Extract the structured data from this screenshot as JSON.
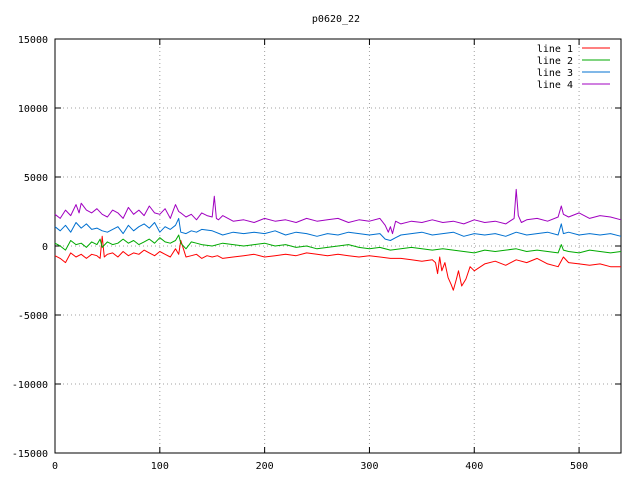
{
  "chart_data": {
    "type": "line",
    "title": "p0620_22",
    "xlabel": "",
    "ylabel": "",
    "xlim": [
      0,
      540
    ],
    "ylim": [
      -15000,
      15000
    ],
    "x_ticks": [
      0,
      100,
      200,
      300,
      400,
      500
    ],
    "y_ticks": [
      -15000,
      -10000,
      -5000,
      0,
      5000,
      10000,
      15000
    ],
    "grid": true,
    "legend_position": "top-right",
    "series": [
      {
        "name": "line 1",
        "color": "#ff0000",
        "x": [
          0,
          5,
          10,
          15,
          20,
          25,
          30,
          35,
          40,
          43,
          45,
          47,
          50,
          55,
          60,
          65,
          70,
          75,
          80,
          85,
          90,
          95,
          100,
          105,
          110,
          115,
          118,
          120,
          125,
          130,
          135,
          140,
          145,
          150,
          155,
          160,
          170,
          180,
          190,
          200,
          210,
          220,
          230,
          240,
          250,
          260,
          270,
          280,
          290,
          300,
          310,
          320,
          330,
          340,
          350,
          360,
          363,
          365,
          367,
          369,
          372,
          375,
          378,
          380,
          383,
          385,
          388,
          392,
          396,
          400,
          410,
          420,
          430,
          440,
          450,
          460,
          470,
          480,
          485,
          490,
          500,
          510,
          520,
          530,
          540
        ],
        "y": [
          -700,
          -900,
          -1200,
          -500,
          -800,
          -600,
          -900,
          -600,
          -700,
          -900,
          700,
          -800,
          -600,
          -500,
          -800,
          -400,
          -700,
          -500,
          -600,
          -300,
          -500,
          -700,
          -400,
          -600,
          -800,
          -200,
          -600,
          400,
          -800,
          -700,
          -600,
          -900,
          -700,
          -800,
          -700,
          -900,
          -800,
          -700,
          -600,
          -800,
          -700,
          -600,
          -700,
          -500,
          -600,
          -700,
          -600,
          -700,
          -800,
          -700,
          -800,
          -900,
          -900,
          -1000,
          -1100,
          -1000,
          -1200,
          -2000,
          -800,
          -1800,
          -1200,
          -2300,
          -2800,
          -3200,
          -2400,
          -1800,
          -2900,
          -2400,
          -1500,
          -1800,
          -1300,
          -1100,
          -1400,
          -1000,
          -1200,
          -900,
          -1300,
          -1500,
          -800,
          -1200,
          -1300,
          -1400,
          -1300,
          -1500,
          -1500
        ]
      },
      {
        "name": "line 2",
        "color": "#00aa00",
        "x": [
          0,
          5,
          10,
          15,
          20,
          25,
          30,
          35,
          40,
          43,
          45,
          50,
          55,
          60,
          65,
          70,
          75,
          80,
          85,
          90,
          95,
          100,
          105,
          110,
          115,
          118,
          120,
          125,
          130,
          135,
          140,
          150,
          160,
          170,
          180,
          190,
          200,
          210,
          220,
          230,
          240,
          250,
          260,
          270,
          280,
          290,
          300,
          310,
          320,
          330,
          340,
          350,
          360,
          370,
          380,
          390,
          400,
          410,
          420,
          430,
          440,
          450,
          460,
          470,
          480,
          483,
          485,
          490,
          500,
          510,
          520,
          530,
          540
        ],
        "y": [
          200,
          0,
          -300,
          400,
          100,
          200,
          -100,
          300,
          100,
          500,
          -100,
          300,
          100,
          200,
          500,
          200,
          400,
          100,
          300,
          500,
          200,
          600,
          300,
          200,
          400,
          800,
          200,
          -200,
          300,
          200,
          100,
          0,
          200,
          100,
          0,
          100,
          200,
          0,
          100,
          -100,
          0,
          -200,
          -100,
          0,
          100,
          -100,
          -200,
          -100,
          -300,
          -200,
          -100,
          -200,
          -300,
          -200,
          -300,
          -400,
          -500,
          -300,
          -400,
          -300,
          -200,
          -400,
          -300,
          -400,
          -500,
          100,
          -300,
          -400,
          -500,
          -300,
          -400,
          -500,
          -400
        ]
      },
      {
        "name": "line 3",
        "color": "#0070d0",
        "x": [
          0,
          5,
          10,
          15,
          20,
          25,
          30,
          35,
          40,
          45,
          50,
          55,
          60,
          65,
          70,
          75,
          80,
          85,
          90,
          95,
          100,
          105,
          110,
          115,
          118,
          120,
          125,
          130,
          135,
          140,
          150,
          160,
          170,
          180,
          190,
          200,
          210,
          220,
          230,
          240,
          250,
          260,
          270,
          280,
          290,
          300,
          310,
          315,
          320,
          325,
          330,
          340,
          350,
          360,
          370,
          380,
          390,
          400,
          410,
          420,
          430,
          440,
          450,
          460,
          470,
          480,
          483,
          485,
          490,
          500,
          510,
          520,
          530,
          540
        ],
        "y": [
          1400,
          1100,
          1500,
          1000,
          1700,
          1300,
          1600,
          1200,
          1300,
          1100,
          1000,
          1200,
          1400,
          900,
          1500,
          1100,
          1400,
          1600,
          1300,
          1700,
          1000,
          1400,
          1200,
          1500,
          2000,
          1000,
          900,
          1100,
          1000,
          1200,
          1100,
          800,
          1000,
          900,
          1000,
          900,
          1100,
          800,
          1000,
          900,
          700,
          900,
          800,
          1000,
          900,
          800,
          900,
          500,
          400,
          600,
          800,
          900,
          1000,
          800,
          900,
          1000,
          700,
          900,
          800,
          900,
          700,
          1000,
          800,
          900,
          1000,
          800,
          1600,
          900,
          1000,
          800,
          900,
          800,
          900,
          700
        ]
      },
      {
        "name": "line 4",
        "color": "#a000c0",
        "x": [
          0,
          5,
          10,
          15,
          20,
          23,
          25,
          30,
          35,
          40,
          45,
          50,
          55,
          60,
          65,
          70,
          75,
          80,
          85,
          90,
          95,
          100,
          105,
          110,
          113,
          115,
          118,
          120,
          125,
          130,
          135,
          140,
          145,
          150,
          152,
          154,
          156,
          160,
          170,
          180,
          190,
          200,
          210,
          220,
          230,
          240,
          250,
          260,
          270,
          280,
          290,
          300,
          310,
          315,
          318,
          320,
          322,
          325,
          330,
          340,
          350,
          360,
          370,
          380,
          390,
          400,
          410,
          420,
          430,
          438,
          440,
          442,
          445,
          450,
          460,
          470,
          480,
          483,
          485,
          490,
          500,
          510,
          520,
          530,
          540
        ],
        "y": [
          2300,
          2000,
          2600,
          2200,
          3000,
          2400,
          3100,
          2600,
          2400,
          2700,
          2300,
          2100,
          2600,
          2400,
          2000,
          2800,
          2300,
          2600,
          2200,
          2900,
          2400,
          2300,
          2700,
          2000,
          2600,
          3000,
          2500,
          2400,
          2100,
          2300,
          1900,
          2400,
          2200,
          2100,
          3600,
          2000,
          1900,
          2200,
          1800,
          1900,
          1700,
          2000,
          1800,
          1900,
          1700,
          2000,
          1800,
          1900,
          2000,
          1700,
          1900,
          1800,
          2000,
          1500,
          1000,
          1400,
          900,
          1800,
          1600,
          1800,
          1700,
          1900,
          1700,
          1800,
          1600,
          1900,
          1700,
          1800,
          1600,
          2000,
          4100,
          2200,
          1700,
          1900,
          2000,
          1800,
          2100,
          2900,
          2300,
          2100,
          2400,
          2000,
          2200,
          2100,
          1900
        ]
      }
    ]
  }
}
